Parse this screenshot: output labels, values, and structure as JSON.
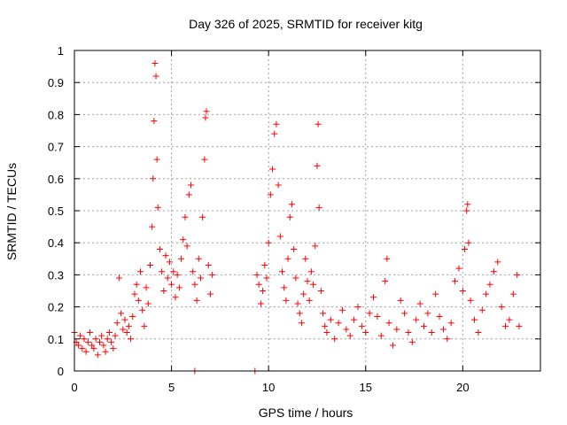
{
  "chart_data": {
    "type": "scatter",
    "title": "Day 326 of 2025, SRMTID for receiver kitg",
    "xlabel": "GPS time / hours",
    "ylabel": "SRMTID / TECUs",
    "xlim": [
      0,
      24
    ],
    "ylim": [
      0,
      1
    ],
    "xticks": [
      0,
      5,
      10,
      15,
      20
    ],
    "yticks": [
      0,
      0.1,
      0.2,
      0.3,
      0.4,
      0.5,
      0.6,
      0.7,
      0.8,
      0.9,
      1
    ],
    "xtick_labels": [
      "0",
      "5",
      "10",
      "15",
      "20"
    ],
    "ytick_labels": [
      "0",
      "0.1",
      "0.2",
      "0.3",
      "0.4",
      "0.5",
      "0.6",
      "0.7",
      "0.8",
      "0.9",
      "1"
    ],
    "grid": true,
    "marker": "+",
    "color": "#ff0000",
    "series": [
      {
        "name": "SRMTID",
        "points": [
          [
            0.0,
            0.12
          ],
          [
            0.1,
            0.09
          ],
          [
            0.2,
            0.08
          ],
          [
            0.3,
            0.11
          ],
          [
            0.4,
            0.07
          ],
          [
            0.5,
            0.1
          ],
          [
            0.6,
            0.06
          ],
          [
            0.7,
            0.09
          ],
          [
            0.8,
            0.12
          ],
          [
            0.9,
            0.08
          ],
          [
            1.0,
            0.07
          ],
          [
            1.1,
            0.1
          ],
          [
            1.2,
            0.05
          ],
          [
            1.3,
            0.09
          ],
          [
            1.4,
            0.11
          ],
          [
            1.5,
            0.08
          ],
          [
            1.6,
            0.06
          ],
          [
            1.7,
            0.1
          ],
          [
            1.8,
            0.12
          ],
          [
            1.9,
            0.09
          ],
          [
            2.0,
            0.07
          ],
          [
            2.1,
            0.11
          ],
          [
            2.2,
            0.15
          ],
          [
            2.3,
            0.29
          ],
          [
            2.4,
            0.18
          ],
          [
            2.5,
            0.13
          ],
          [
            2.6,
            0.16
          ],
          [
            2.7,
            0.12
          ],
          [
            2.8,
            0.14
          ],
          [
            2.9,
            0.1
          ],
          [
            3.0,
            0.17
          ],
          [
            3.1,
            0.24
          ],
          [
            3.2,
            0.27
          ],
          [
            3.3,
            0.22
          ],
          [
            3.4,
            0.31
          ],
          [
            3.5,
            0.19
          ],
          [
            3.6,
            0.14
          ],
          [
            3.7,
            0.26
          ],
          [
            3.8,
            0.21
          ],
          [
            3.9,
            0.33
          ],
          [
            4.0,
            0.45
          ],
          [
            4.05,
            0.6
          ],
          [
            4.1,
            0.78
          ],
          [
            4.15,
            0.96
          ],
          [
            4.2,
            0.92
          ],
          [
            4.25,
            0.66
          ],
          [
            4.3,
            0.51
          ],
          [
            4.4,
            0.38
          ],
          [
            4.5,
            0.31
          ],
          [
            4.6,
            0.25
          ],
          [
            4.7,
            0.36
          ],
          [
            4.8,
            0.29
          ],
          [
            4.9,
            0.34
          ],
          [
            5.0,
            0.27
          ],
          [
            5.1,
            0.31
          ],
          [
            5.2,
            0.23
          ],
          [
            5.3,
            0.3
          ],
          [
            5.4,
            0.26
          ],
          [
            5.5,
            0.35
          ],
          [
            5.6,
            0.41
          ],
          [
            5.7,
            0.48
          ],
          [
            5.8,
            0.39
          ],
          [
            5.9,
            0.55
          ],
          [
            6.0,
            0.58
          ],
          [
            6.1,
            0.31
          ],
          [
            6.2,
            0.27
          ],
          [
            6.3,
            0.22
          ],
          [
            6.4,
            0.35
          ],
          [
            6.5,
            0.29
          ],
          [
            6.6,
            0.48
          ],
          [
            6.7,
            0.66
          ],
          [
            6.75,
            0.79
          ],
          [
            6.8,
            0.81
          ],
          [
            6.9,
            0.33
          ],
          [
            7.0,
            0.24
          ],
          [
            7.1,
            0.3
          ],
          [
            6.2,
            0.0
          ],
          [
            9.3,
            0.0
          ],
          [
            9.4,
            0.3
          ],
          [
            9.5,
            0.27
          ],
          [
            9.6,
            0.21
          ],
          [
            9.7,
            0.25
          ],
          [
            9.8,
            0.33
          ],
          [
            9.9,
            0.29
          ],
          [
            10.0,
            0.4
          ],
          [
            10.1,
            0.55
          ],
          [
            10.2,
            0.63
          ],
          [
            10.3,
            0.74
          ],
          [
            10.4,
            0.77
          ],
          [
            10.5,
            0.58
          ],
          [
            10.6,
            0.42
          ],
          [
            10.7,
            0.31
          ],
          [
            10.8,
            0.26
          ],
          [
            10.9,
            0.22
          ],
          [
            11.0,
            0.35
          ],
          [
            11.1,
            0.48
          ],
          [
            11.2,
            0.52
          ],
          [
            11.3,
            0.38
          ],
          [
            11.4,
            0.29
          ],
          [
            11.5,
            0.21
          ],
          [
            11.6,
            0.18
          ],
          [
            11.7,
            0.15
          ],
          [
            11.8,
            0.24
          ],
          [
            11.9,
            0.35
          ],
          [
            12.0,
            0.28
          ],
          [
            12.1,
            0.22
          ],
          [
            12.2,
            0.31
          ],
          [
            12.3,
            0.27
          ],
          [
            12.4,
            0.39
          ],
          [
            12.5,
            0.64
          ],
          [
            12.55,
            0.77
          ],
          [
            12.6,
            0.51
          ],
          [
            12.7,
            0.25
          ],
          [
            12.8,
            0.18
          ],
          [
            12.9,
            0.14
          ],
          [
            13.0,
            0.12
          ],
          [
            13.2,
            0.16
          ],
          [
            13.4,
            0.1
          ],
          [
            13.6,
            0.15
          ],
          [
            13.8,
            0.19
          ],
          [
            14.0,
            0.13
          ],
          [
            14.2,
            0.11
          ],
          [
            14.4,
            0.16
          ],
          [
            14.6,
            0.2
          ],
          [
            14.8,
            0.14
          ],
          [
            15.0,
            0.12
          ],
          [
            15.2,
            0.18
          ],
          [
            15.4,
            0.23
          ],
          [
            15.6,
            0.17
          ],
          [
            15.8,
            0.11
          ],
          [
            16.0,
            0.28
          ],
          [
            16.1,
            0.35
          ],
          [
            16.2,
            0.15
          ],
          [
            16.4,
            0.08
          ],
          [
            16.6,
            0.13
          ],
          [
            16.8,
            0.22
          ],
          [
            17.0,
            0.18
          ],
          [
            17.2,
            0.12
          ],
          [
            17.4,
            0.09
          ],
          [
            17.6,
            0.16
          ],
          [
            17.8,
            0.21
          ],
          [
            18.0,
            0.14
          ],
          [
            18.2,
            0.18
          ],
          [
            18.4,
            0.12
          ],
          [
            18.6,
            0.24
          ],
          [
            18.8,
            0.17
          ],
          [
            19.0,
            0.13
          ],
          [
            19.2,
            0.1
          ],
          [
            19.4,
            0.15
          ],
          [
            19.6,
            0.28
          ],
          [
            19.8,
            0.32
          ],
          [
            20.0,
            0.25
          ],
          [
            20.1,
            0.38
          ],
          [
            20.2,
            0.5
          ],
          [
            20.25,
            0.52
          ],
          [
            20.3,
            0.4
          ],
          [
            20.4,
            0.22
          ],
          [
            20.6,
            0.16
          ],
          [
            20.8,
            0.12
          ],
          [
            21.0,
            0.19
          ],
          [
            21.2,
            0.24
          ],
          [
            21.4,
            0.27
          ],
          [
            21.6,
            0.31
          ],
          [
            21.8,
            0.34
          ],
          [
            22.0,
            0.2
          ],
          [
            22.2,
            0.14
          ],
          [
            22.4,
            0.16
          ],
          [
            22.6,
            0.24
          ],
          [
            22.8,
            0.3
          ],
          [
            22.9,
            0.14
          ]
        ]
      }
    ]
  }
}
